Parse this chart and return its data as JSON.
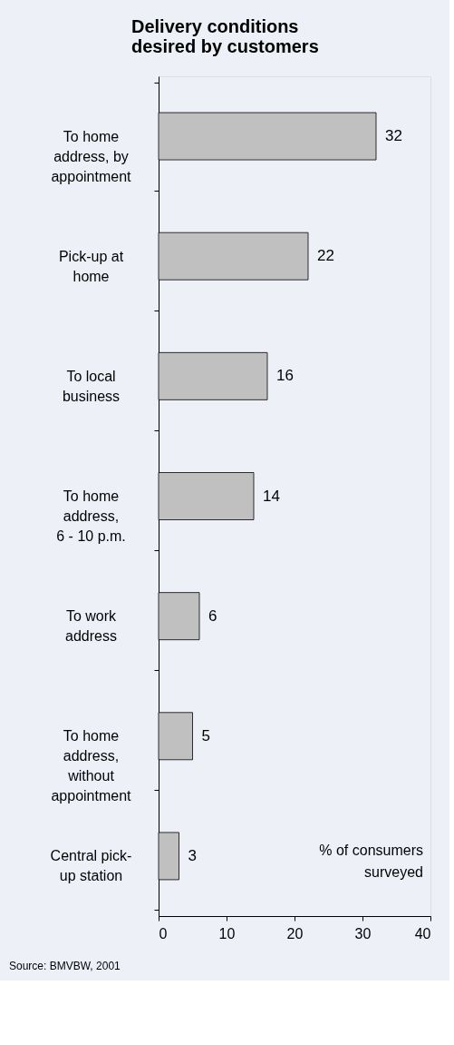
{
  "chart_data": {
    "type": "bar",
    "orientation": "horizontal",
    "title": [
      "Delivery conditions",
      "desired by customers"
    ],
    "categories": [
      "To home\naddress, by\nappointment",
      "Pick-up at\nhome",
      "To local\nbusiness",
      "To home\naddress,\n6 - 10 p.m.",
      "To work\naddress",
      "To home\naddress,\nwithout\nappointment",
      "Central pick-\nup station"
    ],
    "values": [
      32,
      22,
      16,
      14,
      6,
      5,
      3
    ],
    "color": "#c0c0c0",
    "data_labels": true,
    "xlim": [
      0,
      40
    ],
    "xticks": [
      0,
      10,
      20,
      30,
      40
    ],
    "grid": false,
    "annotations": [
      {
        "text": "% of consumers\nsurveyed"
      },
      {
        "text": "Source: BMVBW, 2001"
      }
    ]
  }
}
